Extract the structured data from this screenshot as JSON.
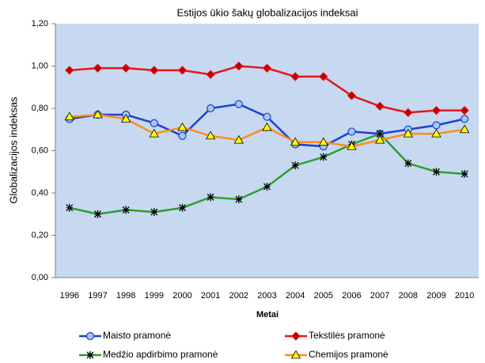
{
  "chart_data": {
    "type": "line",
    "title": "Estijos ūkio šakų globalizacijos indeksai",
    "x_label": "Metai",
    "y_label": "Globalizacijos indeksas",
    "categories": [
      "1996",
      "1997",
      "1998",
      "1999",
      "2000",
      "2001",
      "2002",
      "2003",
      "2004",
      "2005",
      "2006",
      "2007",
      "2008",
      "2009",
      "2010"
    ],
    "ylim": [
      0,
      1.2
    ],
    "yticks": [
      {
        "value": 0,
        "label": "0,00"
      },
      {
        "value": 0.2,
        "label": "0,20"
      },
      {
        "value": 0.4,
        "label": "0,40"
      },
      {
        "value": 0.6,
        "label": "0,60"
      },
      {
        "value": 0.8,
        "label": "0,80"
      },
      {
        "value": 1.0,
        "label": "1,00"
      },
      {
        "value": 1.2,
        "label": "1,20"
      }
    ],
    "grid": false,
    "background": "#c6d9f1",
    "series": [
      {
        "name": "Maisto pramonė",
        "color": "#1f3fd6",
        "marker": "circle",
        "marker_fill": "#a6c8ec",
        "values": [
          0.75,
          0.77,
          0.77,
          0.73,
          0.67,
          0.8,
          0.82,
          0.76,
          0.63,
          0.62,
          0.69,
          0.68,
          0.7,
          0.72,
          0.75
        ]
      },
      {
        "name": "Tekstilės pramonė",
        "color": "#e8141a",
        "marker": "diamond",
        "marker_fill": "#c00000",
        "values": [
          0.98,
          0.99,
          0.99,
          0.98,
          0.98,
          0.96,
          1.0,
          0.99,
          0.95,
          0.95,
          0.86,
          0.81,
          0.78,
          0.79,
          0.79
        ]
      },
      {
        "name": "Medžio apdirbimo pramonė",
        "color": "#2e9e2e",
        "marker": "star",
        "marker_fill": "#000000",
        "values": [
          0.33,
          0.3,
          0.32,
          0.31,
          0.33,
          0.38,
          0.37,
          0.43,
          0.53,
          0.57,
          0.63,
          0.68,
          0.54,
          0.5,
          0.49
        ]
      },
      {
        "name": "Chemijos pramonė",
        "color": "#ff8c1a",
        "marker": "triangle",
        "marker_fill": "#ffff00",
        "values": [
          0.76,
          0.77,
          0.75,
          0.68,
          0.71,
          0.67,
          0.65,
          0.71,
          0.64,
          0.64,
          0.62,
          0.65,
          0.68,
          0.68,
          0.7
        ]
      }
    ]
  }
}
